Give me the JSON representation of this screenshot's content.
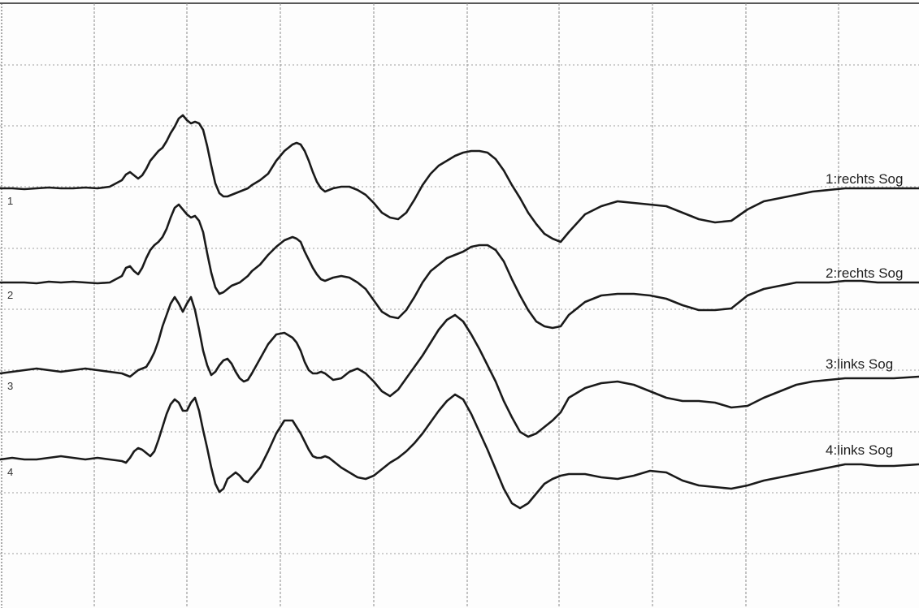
{
  "chart_data": {
    "type": "line",
    "title": "",
    "xlabel": "",
    "ylabel": "",
    "grid": true,
    "x": [
      0,
      15,
      30,
      45,
      60,
      75,
      90,
      105,
      120,
      135,
      150,
      155,
      160,
      165,
      170,
      175,
      180,
      185,
      190,
      195,
      200,
      205,
      210,
      215,
      220,
      225,
      230,
      235,
      240,
      245,
      250,
      255,
      260,
      265,
      270,
      275,
      280,
      285,
      290,
      295,
      300,
      305,
      310,
      320,
      330,
      340,
      350,
      360,
      365,
      370,
      375,
      380,
      385,
      390,
      395,
      400,
      405,
      410,
      420,
      430,
      440,
      450,
      460,
      470,
      480,
      490,
      500,
      510,
      520,
      530,
      540,
      550,
      560,
      570,
      580,
      590,
      600,
      610,
      620,
      630,
      640,
      650,
      660,
      670,
      680,
      690,
      700,
      720,
      740,
      760,
      780,
      800,
      820,
      840,
      860,
      880,
      900,
      920,
      940,
      960,
      980,
      1000,
      1020,
      1040,
      1060,
      1080,
      1100,
      1131
    ],
    "series": [
      {
        "name": "1:rechts Sog",
        "marker": "1",
        "values": [
          0,
          0,
          -1,
          0,
          1,
          0,
          0,
          1,
          0,
          2,
          10,
          17,
          20,
          16,
          12,
          16,
          24,
          34,
          40,
          46,
          50,
          58,
          68,
          76,
          86,
          90,
          84,
          80,
          82,
          80,
          72,
          52,
          28,
          6,
          -6,
          -10,
          -10,
          -8,
          -6,
          -4,
          -2,
          0,
          4,
          10,
          18,
          34,
          46,
          54,
          56,
          54,
          46,
          34,
          20,
          8,
          0,
          -4,
          -2,
          0,
          2,
          2,
          -2,
          -8,
          -18,
          -30,
          -36,
          -38,
          -30,
          -14,
          4,
          18,
          28,
          34,
          40,
          44,
          46,
          46,
          44,
          36,
          22,
          4,
          -12,
          -30,
          -44,
          -56,
          -62,
          -66,
          -54,
          -32,
          -22,
          -16,
          -18,
          -20,
          -22,
          -30,
          -38,
          -42,
          -40,
          -26,
          -16,
          -12,
          -8,
          -4,
          -2,
          0,
          0,
          0,
          0,
          0
        ]
      },
      {
        "name": "2:rechts Sog",
        "marker": "2",
        "values": [
          0,
          0,
          0,
          -1,
          1,
          0,
          1,
          0,
          -1,
          0,
          8,
          18,
          20,
          14,
          10,
          18,
          30,
          40,
          46,
          50,
          56,
          66,
          80,
          92,
          96,
          90,
          84,
          80,
          82,
          76,
          62,
          36,
          12,
          -6,
          -14,
          -12,
          -8,
          -4,
          -2,
          0,
          4,
          8,
          14,
          22,
          34,
          44,
          52,
          56,
          54,
          50,
          38,
          28,
          18,
          10,
          4,
          2,
          4,
          6,
          8,
          6,
          0,
          -8,
          -22,
          -36,
          -42,
          -44,
          -34,
          -18,
          0,
          14,
          22,
          30,
          34,
          38,
          44,
          46,
          46,
          40,
          26,
          4,
          -16,
          -34,
          -48,
          -54,
          -56,
          -54,
          -40,
          -24,
          -16,
          -14,
          -14,
          -16,
          -20,
          -28,
          -34,
          -34,
          -32,
          -16,
          -8,
          -4,
          0,
          0,
          0,
          2,
          2,
          0,
          0,
          0
        ]
      },
      {
        "name": "3:links Sog",
        "marker": "3",
        "values": [
          0,
          2,
          4,
          6,
          4,
          2,
          4,
          6,
          4,
          2,
          0,
          -2,
          -4,
          0,
          4,
          6,
          8,
          16,
          26,
          40,
          58,
          72,
          86,
          94,
          86,
          76,
          86,
          94,
          78,
          54,
          28,
          10,
          -2,
          2,
          10,
          16,
          18,
          12,
          2,
          -6,
          -10,
          -8,
          0,
          18,
          36,
          48,
          50,
          44,
          38,
          28,
          14,
          4,
          0,
          0,
          2,
          0,
          -4,
          -8,
          -6,
          2,
          6,
          0,
          -10,
          -22,
          -28,
          -20,
          -6,
          8,
          22,
          38,
          54,
          66,
          72,
          64,
          48,
          30,
          10,
          -10,
          -34,
          -54,
          -72,
          -78,
          -74,
          -66,
          -58,
          -48,
          -30,
          -18,
          -12,
          -10,
          -14,
          -22,
          -30,
          -34,
          -34,
          -36,
          -42,
          -40,
          -30,
          -22,
          -14,
          -10,
          -8,
          -6,
          -6,
          -6,
          -6,
          -4
        ]
      },
      {
        "name": "4:links Sog",
        "marker": "4",
        "values": [
          0,
          2,
          0,
          0,
          2,
          4,
          2,
          0,
          2,
          0,
          -2,
          -4,
          2,
          10,
          14,
          12,
          8,
          4,
          10,
          24,
          40,
          56,
          68,
          74,
          70,
          60,
          60,
          70,
          76,
          60,
          36,
          14,
          -10,
          -30,
          -40,
          -36,
          -24,
          -20,
          -16,
          -20,
          -26,
          -28,
          -22,
          -10,
          10,
          32,
          48,
          48,
          40,
          32,
          22,
          12,
          4,
          2,
          2,
          4,
          2,
          -2,
          -10,
          -16,
          -22,
          -24,
          -20,
          -12,
          -4,
          2,
          10,
          20,
          32,
          46,
          60,
          72,
          80,
          74,
          56,
          34,
          12,
          -12,
          -36,
          -54,
          -60,
          -54,
          -42,
          -30,
          -24,
          -20,
          -18,
          -18,
          -22,
          -24,
          -20,
          -14,
          -16,
          -26,
          -32,
          -34,
          -36,
          -32,
          -26,
          -22,
          -18,
          -14,
          -10,
          -6,
          -6,
          -8,
          -8,
          -6
        ]
      }
    ]
  },
  "colors": {
    "trace": "#1a1a1a",
    "grid": "#8c8c8c",
    "background": "#fdfdfd"
  }
}
